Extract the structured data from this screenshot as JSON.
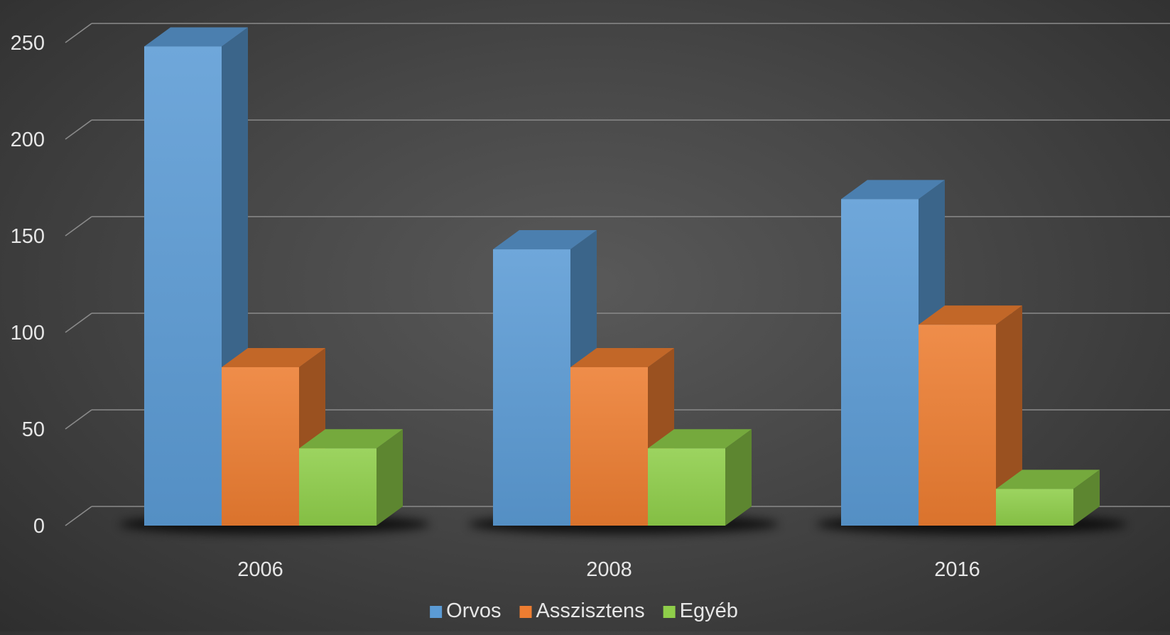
{
  "chart_data": {
    "type": "bar",
    "style": "3d-clustered-column",
    "categories": [
      "2006",
      "2008",
      "2016"
    ],
    "series": [
      {
        "name": "Orvos",
        "values": [
          248,
          143,
          169
        ],
        "color": "#5b9bd5"
      },
      {
        "name": "Asszisztens",
        "values": [
          82,
          82,
          104
        ],
        "color": "#ed7d31"
      },
      {
        "name": "Egyéb",
        "values": [
          40,
          40,
          19
        ],
        "color": "#8fce4a"
      }
    ],
    "yticks": [
      "0",
      "50",
      "100",
      "150",
      "200",
      "250"
    ],
    "ylim": [
      0,
      250
    ],
    "grid": true,
    "legend_position": "bottom",
    "title": "",
    "xlabel": "",
    "ylabel": ""
  }
}
